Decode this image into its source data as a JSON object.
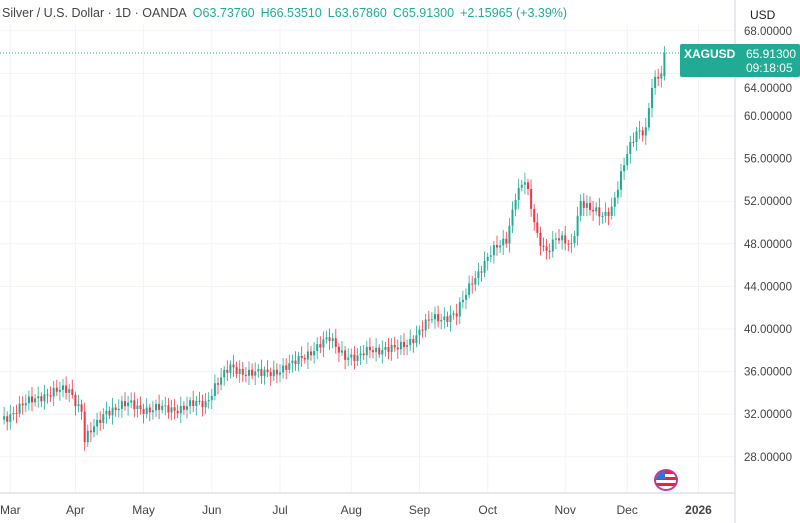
{
  "header": {
    "symbol": "Silver / U.S. Dollar · 1D · OANDA",
    "open": "O63.73760",
    "high": "H66.53510",
    "low": "L63.67860",
    "close": "C65.91300",
    "change": "+2.15965 (+3.39%)",
    "currency": "USD"
  },
  "price_label": {
    "symbol": "XAGUSD",
    "price": "65.91300",
    "countdown": "09:18:05"
  },
  "colors": {
    "up": "#22ab94",
    "down": "#f23645",
    "grid": "#f0f3fa"
  },
  "chart_data": {
    "type": "candlestick",
    "title": "Silver / U.S. Dollar · 1D · OANDA",
    "ylim": [
      26,
      69
    ],
    "yticks": [
      28,
      32,
      36,
      40,
      44,
      48,
      52,
      56,
      60,
      64,
      68
    ],
    "ytick_labels": [
      "28.00000",
      "32.00000",
      "36.00000",
      "40.00000",
      "44.00000",
      "48.00000",
      "52.00000",
      "56.00000",
      "60.00000",
      "64.00000",
      "68.00000"
    ],
    "xticks": [
      {
        "label": "Mar",
        "day": 3
      },
      {
        "label": "Apr",
        "day": 24
      },
      {
        "label": "May",
        "day": 46
      },
      {
        "label": "Jun",
        "day": 68
      },
      {
        "label": "Jul",
        "day": 90
      },
      {
        "label": "Aug",
        "day": 113
      },
      {
        "label": "Sep",
        "day": 135
      },
      {
        "label": "Oct",
        "day": 157
      },
      {
        "label": "Nov",
        "day": 182
      },
      {
        "label": "Dec",
        "day": 202
      },
      {
        "label": "2026",
        "day": 225
      }
    ],
    "xlim": [
      0,
      237
    ],
    "price_path": [
      [
        0,
        31.5
      ],
      [
        10,
        33.3
      ],
      [
        13,
        33.8
      ],
      [
        22,
        34.3
      ],
      [
        26,
        32.4
      ],
      [
        27,
        29.6
      ],
      [
        31,
        31
      ],
      [
        34,
        32.4
      ],
      [
        42,
        32.9
      ],
      [
        48,
        32.4
      ],
      [
        58,
        32.6
      ],
      [
        66,
        33.1
      ],
      [
        69,
        34.7
      ],
      [
        74,
        36.3
      ],
      [
        84,
        35.7
      ],
      [
        94,
        36.6
      ],
      [
        100,
        38
      ],
      [
        106,
        39
      ],
      [
        111,
        37.6
      ],
      [
        115,
        37.1
      ],
      [
        119,
        38.2
      ],
      [
        127,
        38
      ],
      [
        134,
        39.4
      ],
      [
        139,
        41
      ],
      [
        147,
        41.3
      ],
      [
        152,
        44.6
      ],
      [
        158,
        47
      ],
      [
        163,
        48.5
      ],
      [
        166,
        52.6
      ],
      [
        169,
        53.8
      ],
      [
        173,
        48.8
      ],
      [
        176,
        47.4
      ],
      [
        179,
        48.4
      ],
      [
        184,
        47.9
      ],
      [
        187,
        52.1
      ],
      [
        190,
        51.1
      ],
      [
        194,
        50.6
      ],
      [
        197,
        51.5
      ],
      [
        202,
        56.3
      ],
      [
        205,
        58.5
      ],
      [
        208,
        58.9
      ],
      [
        210,
        62.9
      ],
      [
        213,
        63.8
      ],
      [
        214,
        65.9
      ]
    ],
    "last_price": 65.913
  }
}
